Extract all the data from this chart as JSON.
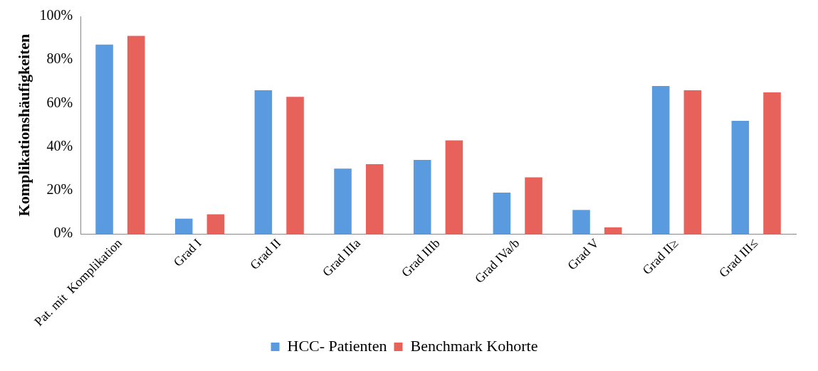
{
  "chart_data": {
    "type": "bar",
    "ylabel": "Komplikationshäufigkeiten",
    "categories": [
      "Pat. mit  Komplikation",
      "Grad I",
      "Grad II",
      "Grad IIIa",
      "Grad IIIb",
      "Grad IVa/b",
      "Grad V",
      "Grad II≥",
      "Grad III≤"
    ],
    "series": [
      {
        "name": "HCC- Patienten",
        "color": "#5a9be0",
        "values": [
          87,
          7,
          66,
          30,
          34,
          19,
          11,
          68,
          52
        ]
      },
      {
        "name": "Benchmark Kohorte",
        "color": "#e8625c",
        "values": [
          91,
          9,
          63,
          32,
          43,
          26,
          3,
          66,
          65
        ]
      }
    ],
    "ylim": [
      0,
      100
    ],
    "yticks": [
      {
        "value": 0,
        "label": "0%"
      },
      {
        "value": 20,
        "label": "20%"
      },
      {
        "value": 40,
        "label": "40%"
      },
      {
        "value": 60,
        "label": "60%"
      },
      {
        "value": 80,
        "label": "80%"
      },
      {
        "value": 100,
        "label": "100%"
      }
    ],
    "grid": false,
    "legend": "bottom"
  }
}
